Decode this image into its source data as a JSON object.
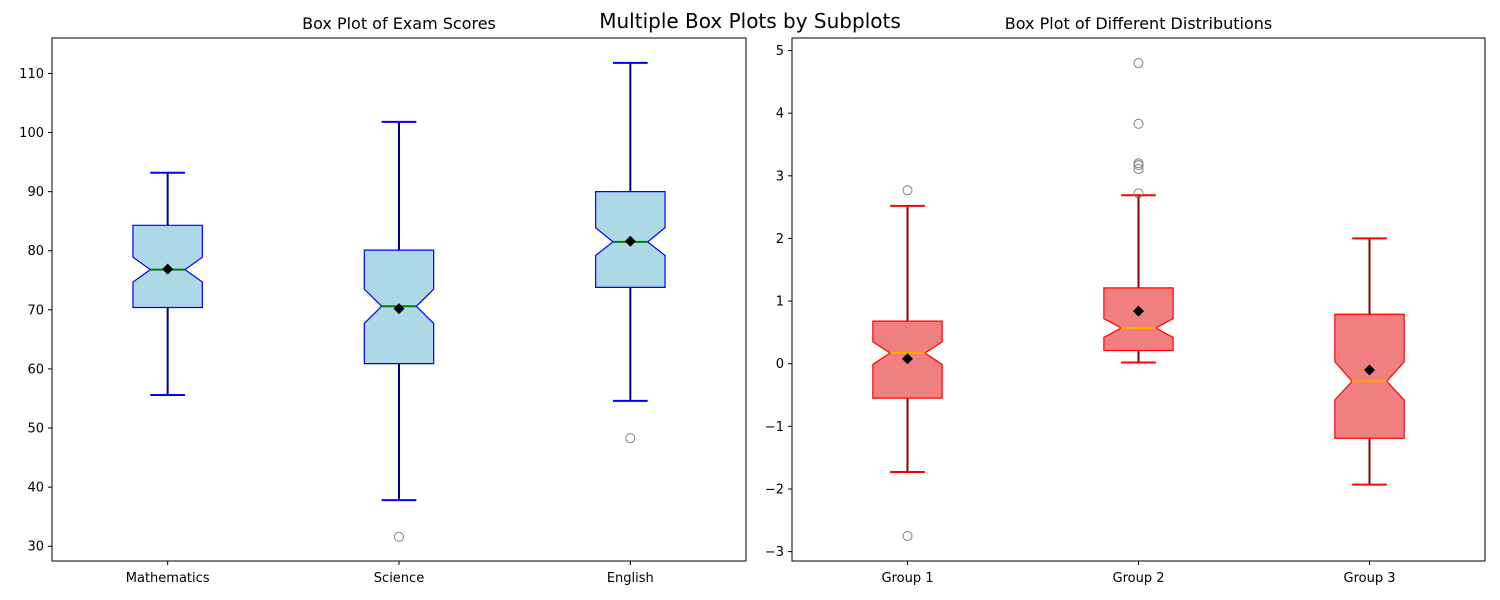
{
  "figure": {
    "suptitle": "Multiple Box Plots by Subplots"
  },
  "chart_data": [
    {
      "type": "boxplot",
      "title": "Box Plot of Exam Scores",
      "xlabel": "",
      "ylabel": "",
      "ylim": [
        27.5,
        116
      ],
      "yticks": [
        30,
        40,
        50,
        60,
        70,
        80,
        90,
        100,
        110
      ],
      "grid": false,
      "notched": true,
      "colors": {
        "box_fill": "#add8e6",
        "box_edge": "#0000ff",
        "whisker": "#00008b",
        "cap": "#0000ff",
        "median": "#008000",
        "mean": "#000000",
        "flier": "#808080"
      },
      "categories": [
        "Mathematics",
        "Science",
        "English"
      ],
      "boxes": [
        {
          "label": "Mathematics",
          "whislo": 55.6,
          "q1": 70.4,
          "med": 76.8,
          "q3": 84.3,
          "whishi": 93.2,
          "mean": 76.9,
          "notch": [
            74.7,
            78.9
          ],
          "fliers": []
        },
        {
          "label": "Science",
          "whislo": 37.8,
          "q1": 60.9,
          "med": 70.6,
          "q3": 80.1,
          "whishi": 101.8,
          "mean": 70.2,
          "notch": [
            67.7,
            73.5
          ],
          "fliers": [
            31.6
          ]
        },
        {
          "label": "English",
          "whislo": 54.6,
          "q1": 73.8,
          "med": 81.5,
          "q3": 90.0,
          "whishi": 111.8,
          "mean": 81.6,
          "notch": [
            79.2,
            83.9
          ],
          "fliers": [
            48.3
          ]
        }
      ]
    },
    {
      "type": "boxplot",
      "title": "Box Plot of Different Distributions",
      "xlabel": "",
      "ylabel": "",
      "ylim": [
        -3.15,
        5.2
      ],
      "yticks": [
        -3,
        -2,
        -1,
        0,
        1,
        2,
        3,
        4,
        5
      ],
      "grid": false,
      "notched": true,
      "colors": {
        "box_fill": "#f08080",
        "box_edge": "#ff0000",
        "whisker": "#8b0000",
        "cap": "#ff0000",
        "median": "#ffa500",
        "mean": "#000000",
        "flier": "#808080"
      },
      "categories": [
        "Group 1",
        "Group 2",
        "Group 3"
      ],
      "boxes": [
        {
          "label": "Group 1",
          "whislo": -1.73,
          "q1": -0.55,
          "med": 0.17,
          "q3": 0.68,
          "whishi": 2.52,
          "mean": 0.08,
          "notch": [
            -0.01,
            0.35
          ],
          "fliers": [
            2.77,
            -2.75
          ]
        },
        {
          "label": "Group 2",
          "whislo": 0.02,
          "q1": 0.21,
          "med": 0.57,
          "q3": 1.21,
          "whishi": 2.69,
          "mean": 0.84,
          "notch": [
            0.42,
            0.72
          ],
          "fliers": [
            2.72,
            3.11,
            3.17,
            3.2,
            3.83,
            4.8
          ]
        },
        {
          "label": "Group 3",
          "whislo": -1.93,
          "q1": -1.19,
          "med": -0.28,
          "q3": 0.79,
          "whishi": 2.0,
          "mean": -0.1,
          "notch": [
            -0.58,
            0.03
          ],
          "fliers": []
        }
      ]
    }
  ]
}
